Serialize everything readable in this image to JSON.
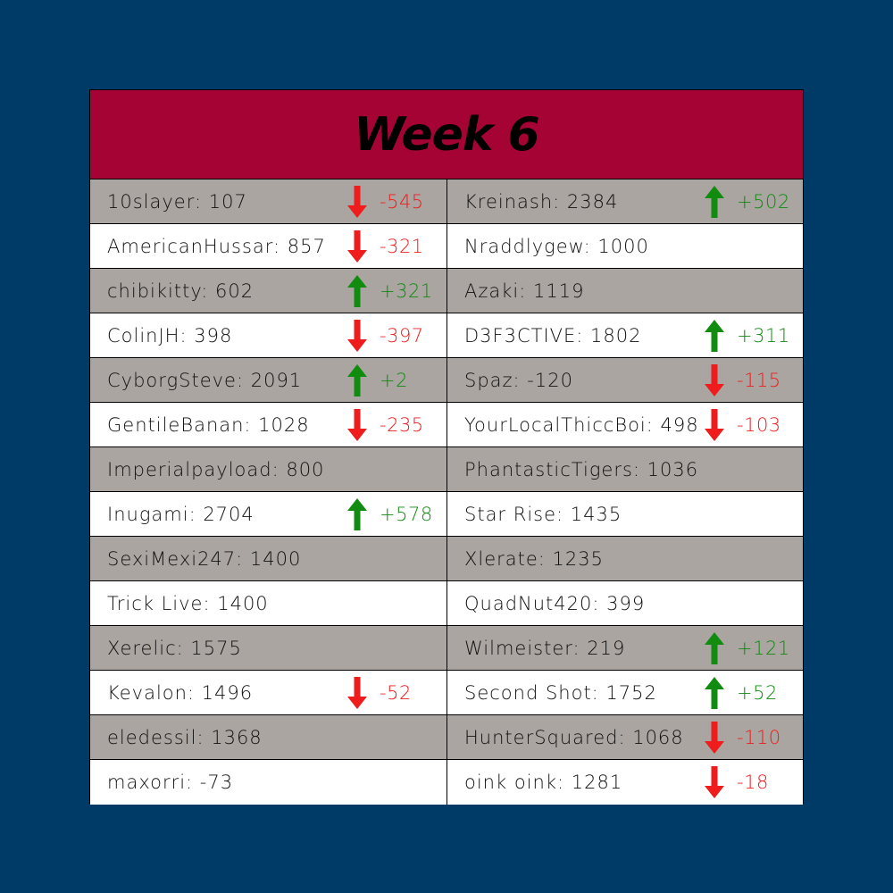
{
  "title": "Week 6",
  "colors": {
    "background": "#003a66",
    "header": "#a60335",
    "row_shaded": "#aaa5a0",
    "row_plain": "#ffffff",
    "up": "#118c11",
    "down": "#ee1c1c"
  },
  "rows": [
    {
      "left": {
        "text": "10slayer: 107",
        "trend": "down",
        "delta": "-545"
      },
      "right": {
        "text": "Kreinash: 2384",
        "trend": "up",
        "delta": "+502"
      }
    },
    {
      "left": {
        "text": "AmericanHussar: 857",
        "trend": "down",
        "delta": "-321"
      },
      "right": {
        "text": "Nraddlygew: 1000",
        "trend": "none",
        "delta": ""
      }
    },
    {
      "left": {
        "text": "chibikitty: 602",
        "trend": "up",
        "delta": "+321"
      },
      "right": {
        "text": "Azaki: 1119",
        "trend": "none",
        "delta": ""
      }
    },
    {
      "left": {
        "text": "ColinJH: 398",
        "trend": "down",
        "delta": "-397"
      },
      "right": {
        "text": "D3F3CTIVE: 1802",
        "trend": "up",
        "delta": "+311"
      }
    },
    {
      "left": {
        "text": "CyborgSteve: 2091",
        "trend": "up",
        "delta": "+2"
      },
      "right": {
        "text": "Spaz: -120",
        "trend": "down",
        "delta": "-115"
      }
    },
    {
      "left": {
        "text": "GentileBanan: 1028",
        "trend": "down",
        "delta": "-235"
      },
      "right": {
        "text": "YourLocalThiccBoi: 498",
        "trend": "down",
        "delta": "-103"
      }
    },
    {
      "left": {
        "text": "Imperialpayload: 800",
        "trend": "none",
        "delta": ""
      },
      "right": {
        "text": "PhantasticTigers: 1036",
        "trend": "none",
        "delta": ""
      }
    },
    {
      "left": {
        "text": "Inugami: 2704",
        "trend": "up",
        "delta": "+578"
      },
      "right": {
        "text": "Star Rise: 1435",
        "trend": "none",
        "delta": ""
      }
    },
    {
      "left": {
        "text": "SexiMexi247: 1400",
        "trend": "none",
        "delta": ""
      },
      "right": {
        "text": "Xlerate: 1235",
        "trend": "none",
        "delta": ""
      }
    },
    {
      "left": {
        "text": "Trick Live: 1400",
        "trend": "none",
        "delta": ""
      },
      "right": {
        "text": "QuadNut420: 399",
        "trend": "none",
        "delta": ""
      }
    },
    {
      "left": {
        "text": "Xerelic: 1575",
        "trend": "none",
        "delta": ""
      },
      "right": {
        "text": "Wilmeister: 219",
        "trend": "up",
        "delta": "+121"
      }
    },
    {
      "left": {
        "text": "Kevalon: 1496",
        "trend": "down",
        "delta": "-52"
      },
      "right": {
        "text": "Second Shot: 1752",
        "trend": "up",
        "delta": "+52"
      }
    },
    {
      "left": {
        "text": "eledessil: 1368",
        "trend": "none",
        "delta": ""
      },
      "right": {
        "text": "HunterSquared: 1068",
        "trend": "down",
        "delta": "-110"
      }
    },
    {
      "left": {
        "text": "maxorri: -73",
        "trend": "none",
        "delta": ""
      },
      "right": {
        "text": "oink oink: 1281",
        "trend": "down",
        "delta": "-18"
      }
    }
  ]
}
